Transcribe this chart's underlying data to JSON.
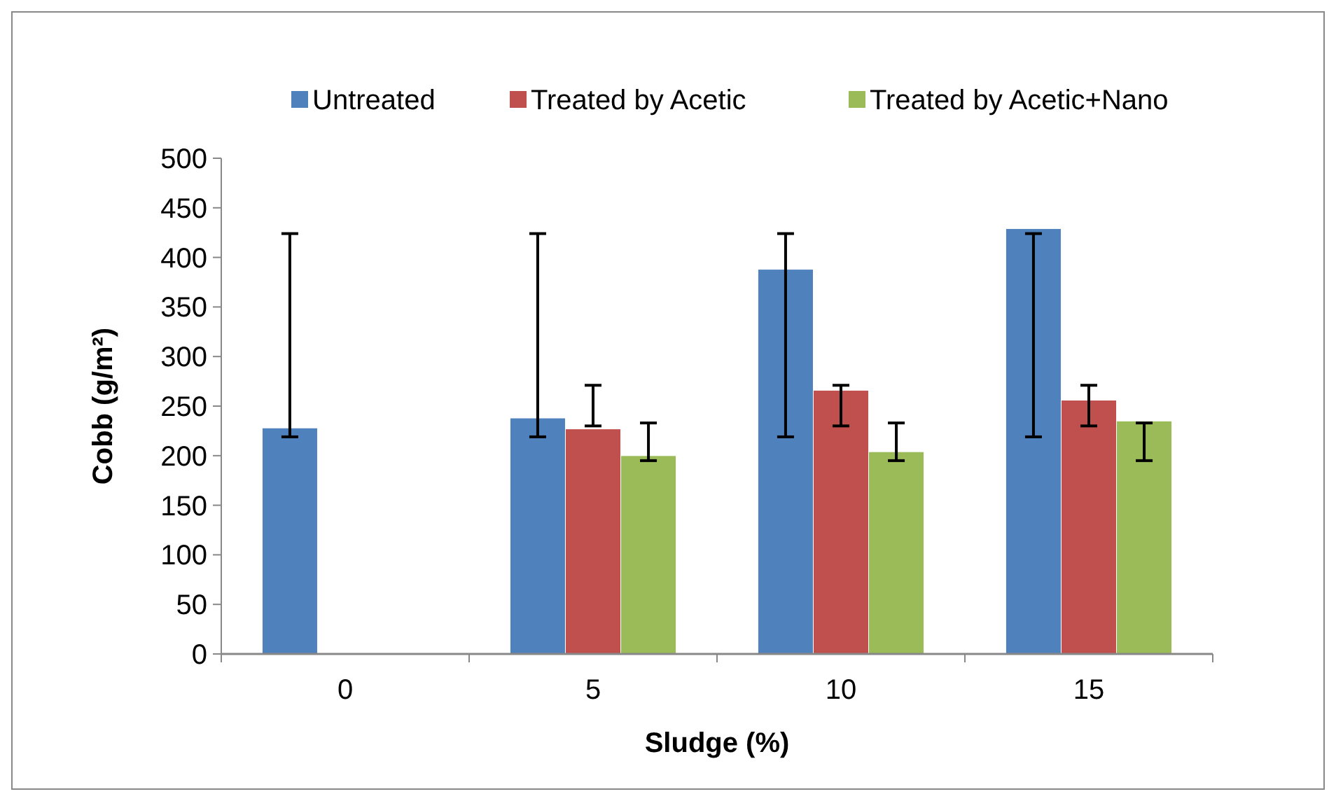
{
  "chart_data": {
    "type": "bar",
    "xlabel": "Sludge (%)",
    "ylabel": "Cobb (g/m²)",
    "categories": [
      "0",
      "5",
      "10",
      "15"
    ],
    "series": [
      {
        "name": "Untreated",
        "color": "#4f81bd",
        "values": [
          228,
          238,
          388,
          429
        ],
        "errors": [
          [
            219,
            424
          ],
          [
            219,
            424
          ],
          [
            219,
            424
          ],
          [
            219,
            424
          ]
        ]
      },
      {
        "name": "Treated by Acetic",
        "color": "#c0504d",
        "values": [
          null,
          227,
          266,
          256
        ],
        "errors": [
          null,
          [
            230,
            271
          ],
          [
            230,
            271
          ],
          [
            230,
            271
          ]
        ]
      },
      {
        "name": "Treated by Acetic+Nano",
        "color": "#9bbb59",
        "values": [
          null,
          200,
          204,
          235
        ],
        "errors": [
          null,
          [
            195,
            233
          ],
          [
            195,
            233
          ],
          [
            195,
            233
          ]
        ]
      }
    ],
    "ylim": [
      0,
      500
    ],
    "yticks": [
      0,
      50,
      100,
      150,
      200,
      250,
      300,
      350,
      400,
      450,
      500
    ],
    "grid": false,
    "legend": "top"
  }
}
